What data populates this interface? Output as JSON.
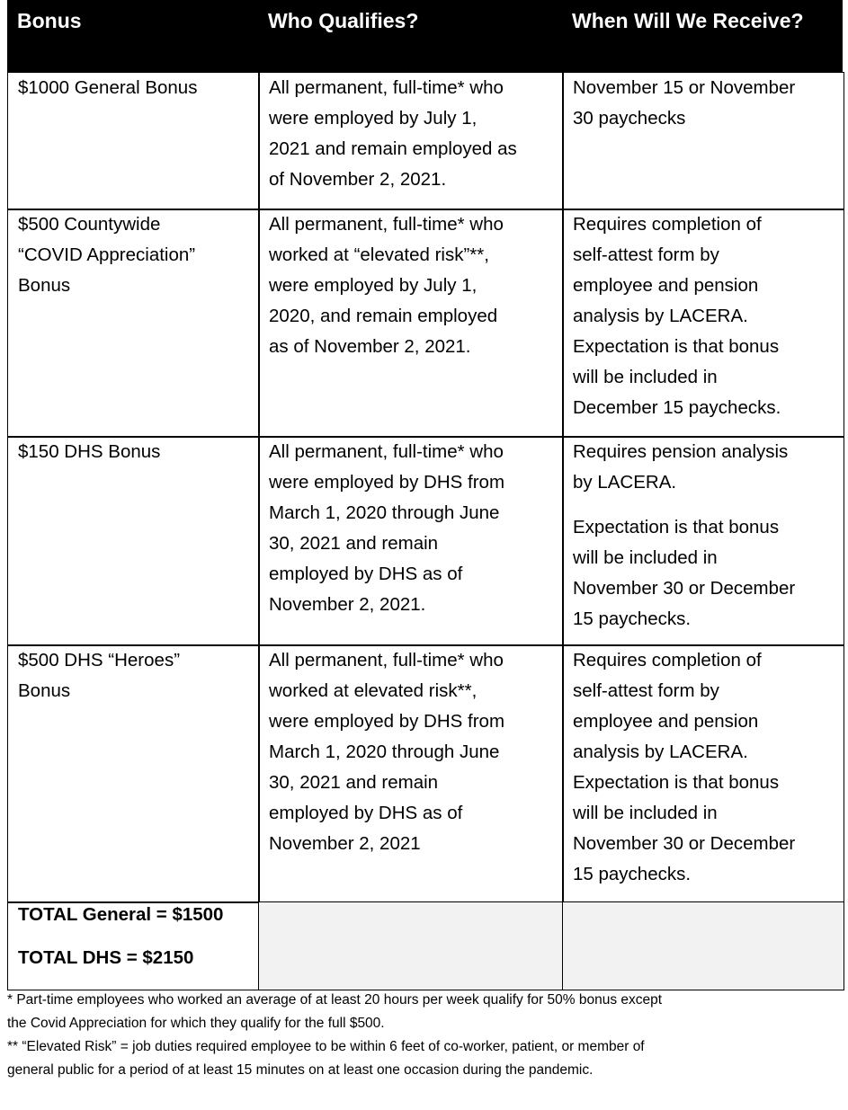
{
  "header": [
    "Bonus",
    "Who Qualifies?",
    "When Will We Receive?"
  ],
  "rows": [
    [
      [
        [
          "$1000 General Bonus"
        ]
      ],
      [
        [
          "All permanent, full-time* who",
          "were employed by July 1,",
          "2021 and remain employed as",
          "of November 2, 2021."
        ]
      ],
      [
        [
          "November 15 or November",
          "30 paychecks"
        ]
      ]
    ],
    [
      [
        [
          "$500 Countywide",
          "“COVID Appreciation”",
          "Bonus"
        ]
      ],
      [
        [
          "All permanent, full-time* who",
          "worked at “elevated risk”**,",
          "were employed by July 1,",
          "2020, and remain employed",
          "as of November 2, 2021."
        ]
      ],
      [
        [
          "Requires completion of",
          "self-attest form by",
          "employee and pension",
          "analysis by LACERA.",
          "Expectation is that bonus",
          "will be included in",
          "December 15 paychecks."
        ]
      ]
    ],
    [
      [
        [
          "$150 DHS Bonus"
        ]
      ],
      [
        [
          "All permanent, full-time* who",
          "were employed by DHS from",
          "March 1, 2020 through June",
          "30, 2021 and remain",
          "employed by DHS as of",
          "November 2, 2021."
        ]
      ],
      [
        [
          "Requires pension analysis",
          "by LACERA."
        ],
        [
          "Expectation is that bonus",
          "will be included in",
          "November 30 or December",
          "15 paychecks."
        ]
      ]
    ],
    [
      [
        [
          "$500 DHS “Heroes”",
          "Bonus"
        ]
      ],
      [
        [
          "All permanent, full-time* who",
          "worked at elevated risk**,",
          "were employed by DHS from",
          "March 1, 2020 through June",
          "30, 2021 and remain",
          "employed by DHS as of",
          "November 2, 2021"
        ]
      ],
      [
        [
          "Requires completion of",
          "self-attest form by",
          "employee and pension",
          "analysis by LACERA.",
          "Expectation is that bonus",
          "will be included in",
          "November 30 or December",
          "15 paychecks."
        ]
      ]
    ]
  ],
  "totals": [
    "TOTAL General = $1500",
    "TOTAL DHS = $2150"
  ],
  "footnotes": [
    "* Part-time employees who worked an average of at least 20 hours per week qualify for 50% bonus except",
    "the Covid Appreciation for which they qualify for the full $500.",
    "** “Elevated Risk” = job duties required employee to be within 6 feet of co-worker, patient, or member of",
    "general public for a period of at least 15 minutes on at least one occasion during the pandemic."
  ]
}
